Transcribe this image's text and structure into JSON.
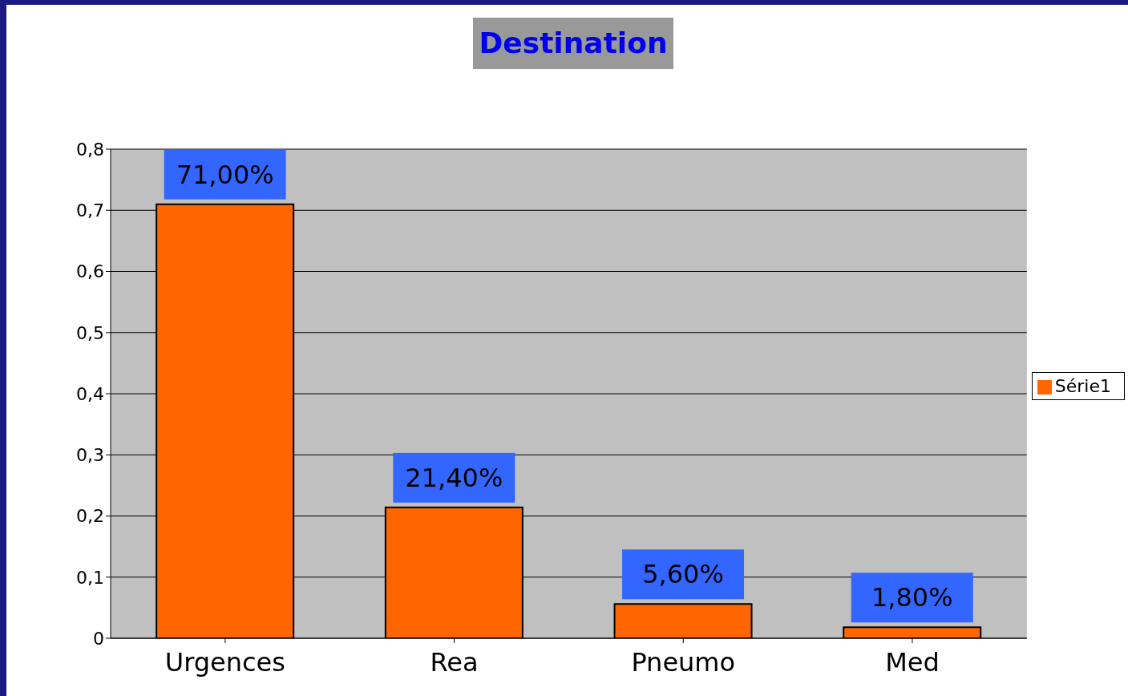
{
  "chart_data": {
    "type": "bar",
    "title": "Destination",
    "categories": [
      "Urgences",
      "Rea",
      "Pneumo",
      "Med"
    ],
    "series": [
      {
        "name": "Série1",
        "color": "#ff6600",
        "values": [
          0.71,
          0.214,
          0.056,
          0.018
        ],
        "value_labels": [
          "71,00%",
          "21,40%",
          "5,60%",
          "1,80%"
        ]
      }
    ],
    "ylim": [
      0,
      0.8
    ],
    "yticks": [
      0,
      {
        "value": 0.1,
        "label": "0,1"
      },
      {
        "value": 0.2,
        "label": "0,2"
      },
      {
        "value": 0.3,
        "label": "0,3"
      },
      {
        "value": 0.4,
        "label": "0,4"
      },
      {
        "value": 0.5,
        "label": "0,5"
      },
      {
        "value": 0.6,
        "label": "0,6"
      },
      {
        "value": 0.7,
        "label": "0,7"
      },
      {
        "value": 0.8,
        "label": "0,8"
      }
    ],
    "grid": "y",
    "legend": "right"
  }
}
